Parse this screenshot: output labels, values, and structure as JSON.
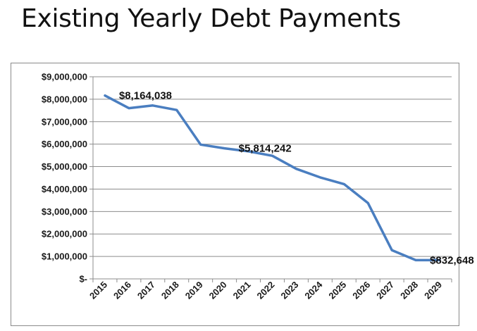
{
  "page": {
    "title": "Existing Yearly Debt Payments"
  },
  "chart_data": {
    "type": "line",
    "title": "",
    "xlabel": "",
    "ylabel": "",
    "x": [
      "2015",
      "2016",
      "2017",
      "2018",
      "2019",
      "2020",
      "2021",
      "2022",
      "2023",
      "2024",
      "2025",
      "2026",
      "2027",
      "2028",
      "2029"
    ],
    "series": [
      {
        "values": [
          8164038,
          7600000,
          7720000,
          7520000,
          5980000,
          5814242,
          5680000,
          5480000,
          4900000,
          4520000,
          4220000,
          3380000,
          1280000,
          832648,
          832648
        ],
        "color": "#4a7ec0"
      }
    ],
    "ylim": [
      0,
      9000000
    ],
    "yticks": [
      0,
      1000000,
      2000000,
      3000000,
      4000000,
      5000000,
      6000000,
      7000000,
      8000000,
      9000000
    ],
    "ytick_labels": [
      "$-",
      "$1,000,000",
      "$2,000,000",
      "$3,000,000",
      "$4,000,000",
      "$5,000,000",
      "$6,000,000",
      "$7,000,000",
      "$8,000,000",
      "$9,000,000"
    ],
    "data_labels": [
      {
        "index": 0,
        "text": "$8,164,038"
      },
      {
        "index": 5,
        "text": "$5,814,242"
      },
      {
        "index": 13,
        "text": "$832,648"
      }
    ],
    "grid": true,
    "legend": "none"
  }
}
